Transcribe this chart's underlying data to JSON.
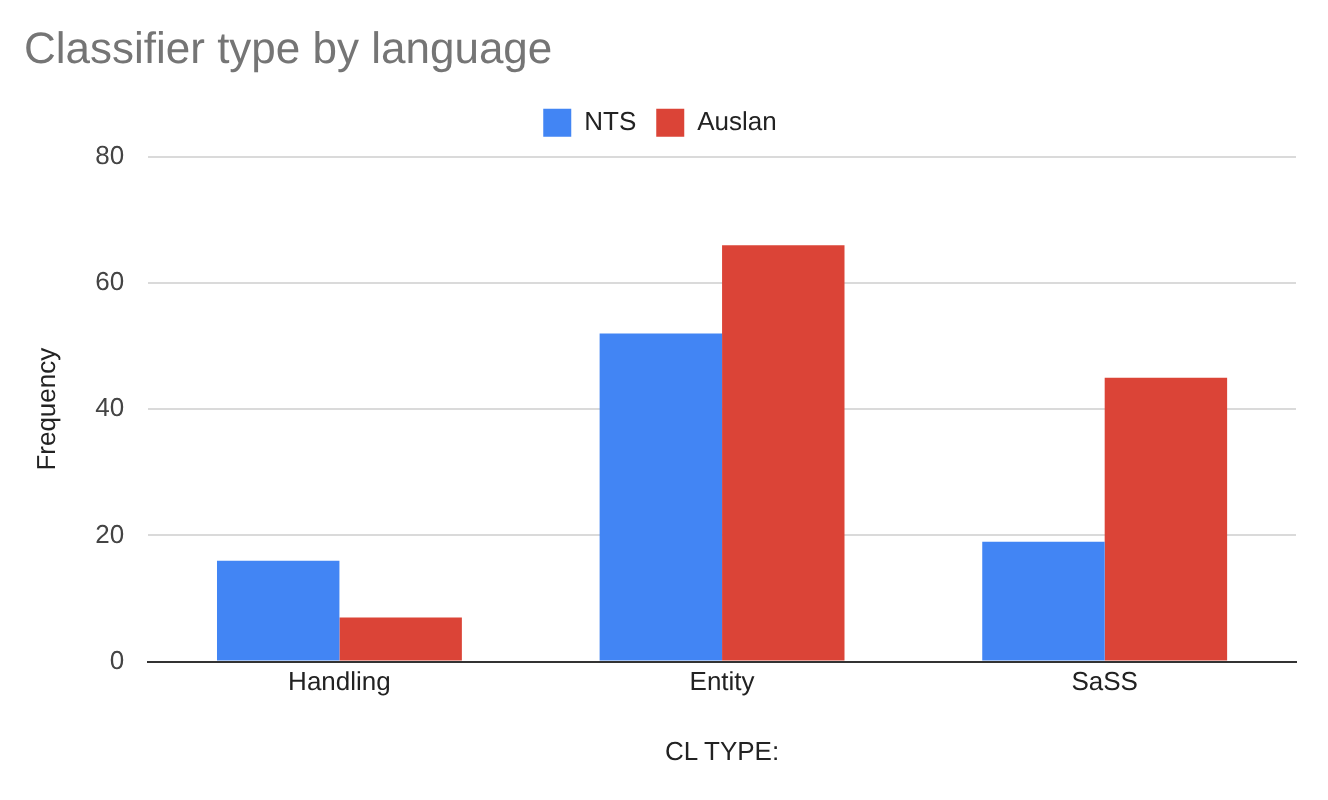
{
  "chart_data": {
    "type": "bar",
    "title": "Classifier type by language",
    "xlabel": "CL TYPE:",
    "ylabel": "Frequency",
    "categories": [
      "Handling",
      "Entity",
      "SaSS"
    ],
    "series": [
      {
        "name": "NTS",
        "color": "#4285f4",
        "values": [
          16,
          52,
          19
        ]
      },
      {
        "name": "Auslan",
        "color": "#db4437",
        "values": [
          7,
          66,
          45
        ]
      }
    ],
    "ylim": [
      0,
      80
    ],
    "yticks": [
      0,
      20,
      40,
      60,
      80
    ],
    "grid": "y",
    "legend": "top"
  }
}
